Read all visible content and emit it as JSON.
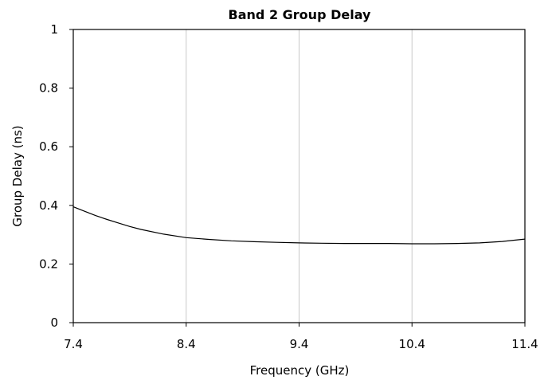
{
  "chart_data": {
    "type": "line",
    "title": "Band 2 Group Delay",
    "xlabel": "Frequency (GHz)",
    "ylabel": "Group Delay (ns)",
    "xlim": [
      7.4,
      11.4
    ],
    "ylim": [
      0,
      1
    ],
    "x_ticks": [
      "7.4",
      "8.4",
      "9.4",
      "10.4",
      "11.4"
    ],
    "y_ticks": [
      "0",
      "0.2",
      "0.4",
      "0.6",
      "0.8",
      "1"
    ],
    "grid": "vertical",
    "legend": "none",
    "line_color": "#000000",
    "grid_color": "#c8c8c8",
    "series": [
      {
        "x": [
          7.4,
          7.5,
          7.6,
          7.7,
          7.8,
          7.9,
          8.0,
          8.2,
          8.4,
          8.6,
          8.8,
          9.0,
          9.2,
          9.4,
          9.6,
          9.8,
          10.0,
          10.2,
          10.4,
          10.6,
          10.8,
          11.0,
          11.2,
          11.4
        ],
        "y": [
          0.395,
          0.38,
          0.365,
          0.352,
          0.34,
          0.328,
          0.318,
          0.302,
          0.29,
          0.284,
          0.279,
          0.276,
          0.274,
          0.272,
          0.271,
          0.27,
          0.27,
          0.27,
          0.269,
          0.269,
          0.27,
          0.272,
          0.277,
          0.285
        ]
      }
    ]
  }
}
